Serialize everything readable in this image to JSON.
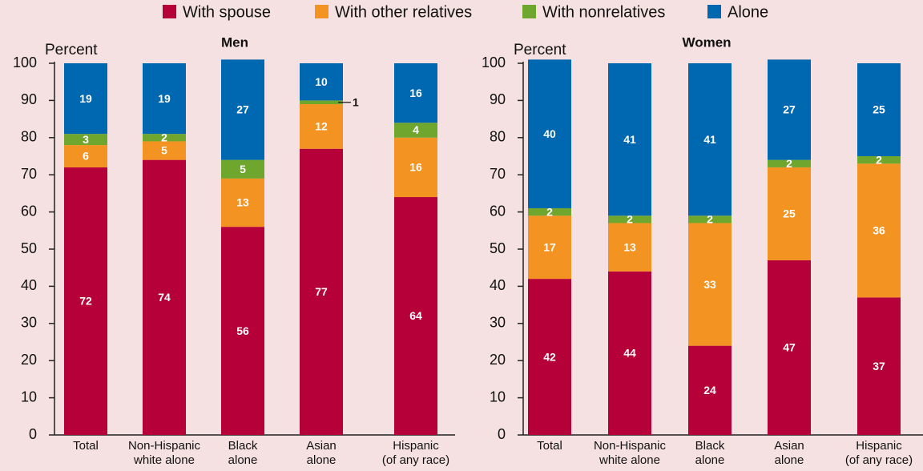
{
  "chart_data": [
    {
      "type": "stacked_bar",
      "title": "Men",
      "y_label": "Percent",
      "categories": [
        "Total",
        "Non-Hispanic\nwhite alone",
        "Black\nalone",
        "Asian\nalone",
        "Hispanic\n(of any race)"
      ],
      "series": [
        {
          "name": "With spouse",
          "color": "#b5003a",
          "values": [
            72,
            74,
            56,
            77,
            64
          ]
        },
        {
          "name": "With other relatives",
          "color": "#f39321",
          "values": [
            6,
            5,
            13,
            12,
            16
          ]
        },
        {
          "name": "With nonrelatives",
          "color": "#6ea62e",
          "values": [
            3,
            2,
            5,
            1,
            4
          ]
        },
        {
          "name": "Alone",
          "color": "#0068b1",
          "values": [
            19,
            19,
            27,
            10,
            16
          ]
        }
      ],
      "ylim": [
        0,
        100
      ],
      "yticks": [
        0,
        10,
        20,
        30,
        40,
        50,
        60,
        70,
        80,
        90,
        100
      ]
    },
    {
      "type": "stacked_bar",
      "title": "Women",
      "y_label": "Percent",
      "categories": [
        "Total",
        "Non-Hispanic\nwhite alone",
        "Black\nalone",
        "Asian\nalone",
        "Hispanic\n(of any race)"
      ],
      "series": [
        {
          "name": "With spouse",
          "color": "#b5003a",
          "values": [
            42,
            44,
            24,
            47,
            37
          ]
        },
        {
          "name": "With other relatives",
          "color": "#f39321",
          "values": [
            17,
            13,
            33,
            25,
            36
          ]
        },
        {
          "name": "With nonrelatives",
          "color": "#6ea62e",
          "values": [
            2,
            2,
            2,
            2,
            2
          ]
        },
        {
          "name": "Alone",
          "color": "#0068b1",
          "values": [
            40,
            41,
            41,
            27,
            25
          ]
        }
      ],
      "ylim": [
        0,
        100
      ],
      "yticks": [
        0,
        10,
        20,
        30,
        40,
        50,
        60,
        70,
        80,
        90,
        100
      ]
    }
  ]
}
